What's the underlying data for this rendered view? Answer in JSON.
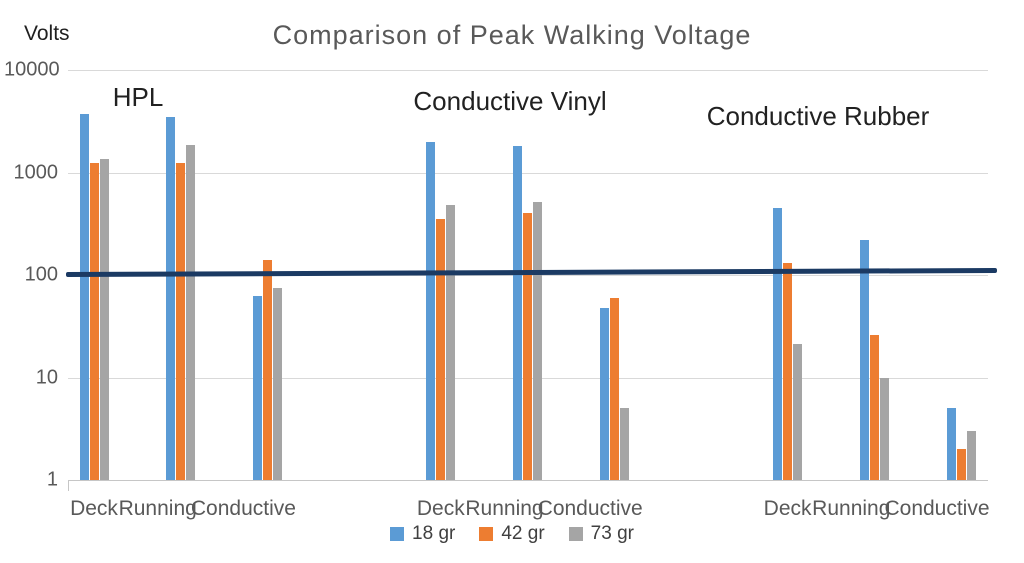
{
  "title": "Comparison of Peak Walking Voltage",
  "y_axis": {
    "unit_label": "Volts"
  },
  "colors": {
    "series_blue": "#5B9BD5",
    "series_orange": "#ED7D31",
    "series_gray": "#A5A5A5",
    "limit_line": "#1B3A63",
    "gridline": "#D9D9D9",
    "title_text": "#595959",
    "axis_text": "#595959",
    "group_label_text": "#212121"
  },
  "chart_data": {
    "type": "bar",
    "title": "Comparison of Peak Walking Voltage",
    "ylabel": "Volts",
    "xlabel": "",
    "y_scale": "log",
    "ylim": [
      1,
      10000
    ],
    "y_ticks": [
      10000,
      1000,
      100,
      10,
      1
    ],
    "grid": true,
    "legend_position": "bottom-center",
    "group_labels": [
      "HPL",
      "Conductive  Vinyl",
      "Conductive  Rubber"
    ],
    "categories": [
      "Deck",
      "Running",
      "Conductive",
      "Deck",
      "Running",
      "Conductive",
      "Deck",
      "Running",
      "Conductive"
    ],
    "series": [
      {
        "name": "18 gr",
        "color": "#5B9BD5",
        "values": [
          3700,
          3500,
          62,
          2000,
          1800,
          48,
          450,
          220,
          5
        ]
      },
      {
        "name": "42 gr",
        "color": "#ED7D31",
        "values": [
          1250,
          1230,
          140,
          350,
          400,
          60,
          130,
          26,
          2
        ]
      },
      {
        "name": "73 gr",
        "color": "#A5A5A5",
        "values": [
          1350,
          1850,
          75,
          480,
          520,
          5,
          21,
          10,
          3
        ]
      }
    ],
    "limit_line": {
      "value": 105,
      "color": "#1B3A63"
    }
  }
}
